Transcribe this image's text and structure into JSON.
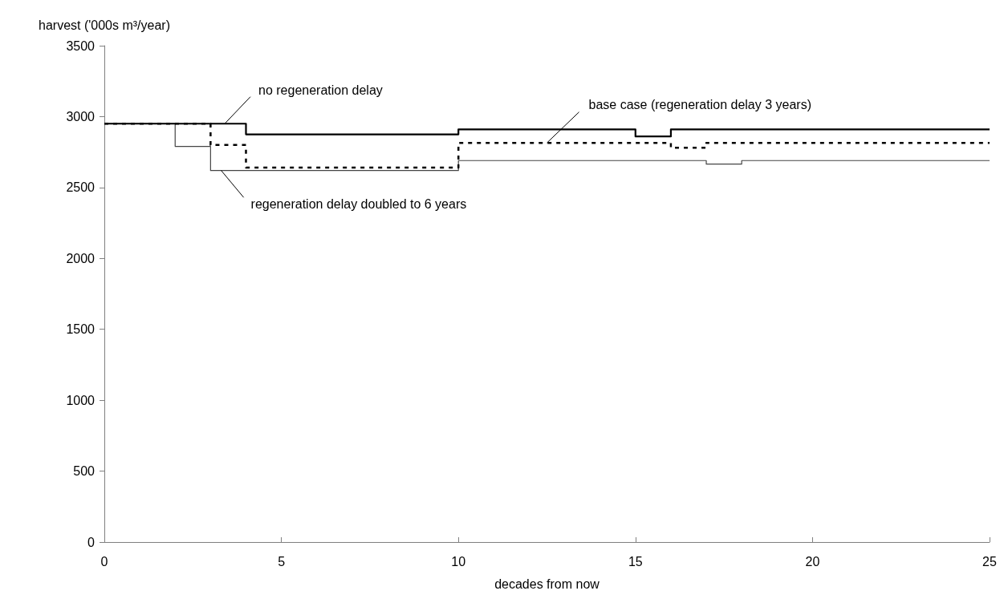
{
  "chart_data": {
    "type": "step",
    "xlabel": "decades from now",
    "ylabel": "harvest ('000s m³/year)",
    "xlim": [
      0,
      25
    ],
    "xticks": [
      0,
      5,
      10,
      15,
      20,
      25
    ],
    "ylim": [
      0,
      3500
    ],
    "yticks": [
      0,
      500,
      1000,
      1500,
      2000,
      2500,
      3000,
      3500
    ],
    "grid": false,
    "marker": "none",
    "series": [
      {
        "color": "#000000",
        "line_style": "solid",
        "x": [
          0,
          4,
          10,
          15,
          16,
          25
        ],
        "values": [
          2950,
          2875,
          2910,
          2860,
          2910,
          2910
        ]
      },
      {
        "color": "#000000",
        "line_style": "dashed",
        "x": [
          0,
          3,
          4,
          10,
          16,
          17,
          25
        ],
        "values": [
          2950,
          2800,
          2640,
          2815,
          2780,
          2815,
          2815
        ]
      },
      {
        "color": "#444444",
        "line_style": "solid",
        "x": [
          0,
          2,
          3,
          10,
          17,
          18,
          25
        ],
        "values": [
          2950,
          2790,
          2620,
          2690,
          2665,
          2690,
          2690
        ]
      }
    ],
    "annotations": [
      {
        "text": "no regeneration delay",
        "x": 3.4,
        "y": 2950
      },
      {
        "text": "base case (regeneration delay 3 years)",
        "x": 12.5,
        "y": 2815
      },
      {
        "text": "regeneration delay doubled to 6 years",
        "x": 3.3,
        "y": 2620
      }
    ]
  }
}
